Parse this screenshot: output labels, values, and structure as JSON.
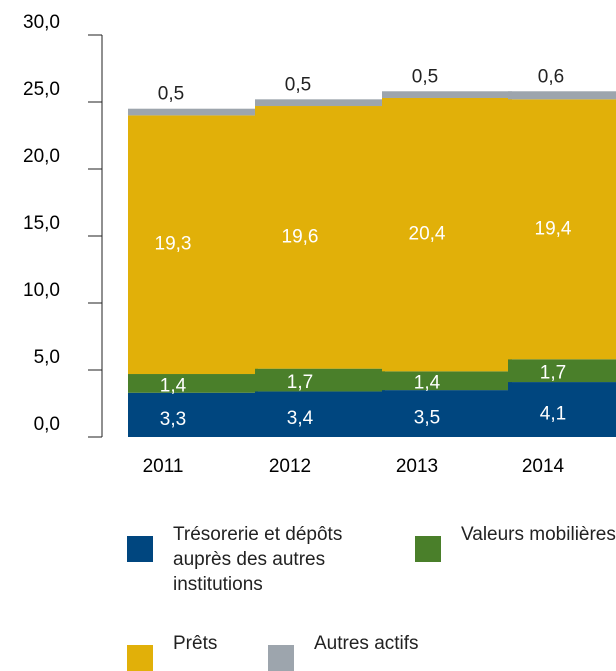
{
  "chart_data": {
    "type": "stacked_bar",
    "categories": [
      "2011",
      "2012",
      "2013",
      "2014"
    ],
    "series": [
      {
        "name": "Trésorerie et dépôts auprès des autres institutions",
        "color": "#00467f",
        "values": [
          3.3,
          3.4,
          3.5,
          4.1
        ],
        "value_labels": [
          "3,3",
          "3,4",
          "3,5",
          "4,1"
        ]
      },
      {
        "name": "Valeurs mobilières",
        "color": "#4a7f2a",
        "values": [
          1.4,
          1.7,
          1.4,
          1.7
        ],
        "value_labels": [
          "1,4",
          "1,7",
          "1,4",
          "1,7"
        ]
      },
      {
        "name": "Prêts",
        "color": "#e1b009",
        "values": [
          19.3,
          19.6,
          20.4,
          19.4
        ],
        "value_labels": [
          "19,3",
          "19,6",
          "20,4",
          "19,4"
        ]
      },
      {
        "name": "Autres actifs",
        "color": "#9da5ad",
        "values": [
          0.5,
          0.5,
          0.5,
          0.6
        ],
        "value_labels": [
          "0,5",
          "0,5",
          "0,5",
          "0,6"
        ]
      }
    ],
    "ylim": [
      0,
      30
    ],
    "yticks": [
      {
        "value": 0,
        "label": "0,0"
      },
      {
        "value": 5,
        "label": "5,0"
      },
      {
        "value": 10,
        "label": "10,0"
      },
      {
        "value": 15,
        "label": "15,0"
      },
      {
        "value": 20,
        "label": "20,0"
      },
      {
        "value": 25,
        "label": "25,0"
      },
      {
        "value": 30,
        "label": "30,0"
      }
    ]
  }
}
